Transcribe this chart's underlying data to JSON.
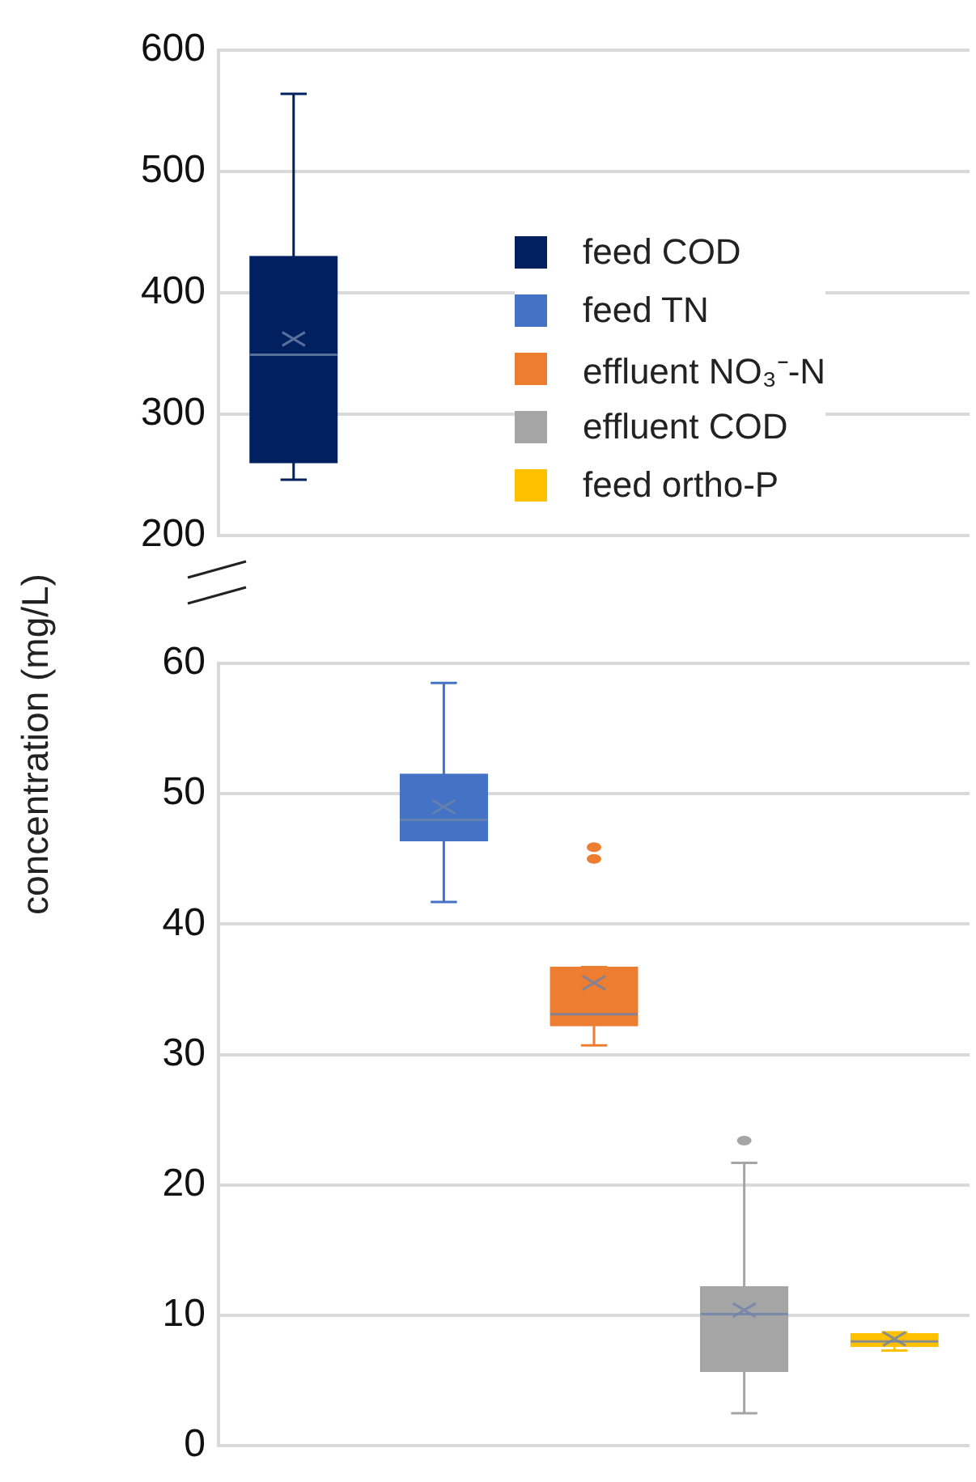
{
  "chart_data": [
    {
      "type": "box",
      "categories": [
        null,
        null,
        null,
        null,
        null
      ],
      "ylim": [
        200,
        600
      ],
      "yticks": [
        200,
        300,
        400,
        500,
        600
      ],
      "grid": "y",
      "legend": "right",
      "series": [
        {
          "name": "feed COD",
          "color": "#002060",
          "boxes": [
            {
              "low": 246,
              "q1": 260,
              "median": 349,
              "q3": 430,
              "high": 564,
              "mean": 362
            },
            null,
            null,
            null,
            null
          ]
        },
        {
          "name": "feed TN",
          "color": "#4472c4",
          "boxes": [
            null,
            null,
            null,
            null,
            null
          ]
        },
        {
          "name": "effluent NO₃⁻-N",
          "color": "#ed7d31",
          "boxes": [
            null,
            null,
            null,
            null,
            null
          ]
        },
        {
          "name": "effluent COD",
          "color": "#a5a5a5",
          "boxes": [
            null,
            null,
            null,
            null,
            null
          ]
        },
        {
          "name": "feed ortho-P",
          "color": "#ffc000",
          "boxes": [
            null,
            null,
            null,
            null,
            null
          ]
        }
      ]
    },
    {
      "type": "box",
      "categories": [
        null,
        null,
        null,
        null,
        null
      ],
      "ylim": [
        0,
        60
      ],
      "yticks": [
        0,
        10,
        20,
        30,
        40,
        50,
        60
      ],
      "grid": "y",
      "ylabel": "concentration (mg/L)",
      "series": [
        {
          "color": "#4472c4",
          "boxes": [
            null,
            {
              "low": 41.7,
              "q1": 46.4,
              "median": 48.0,
              "q3": 51.5,
              "high": 58.5,
              "mean": 49.0
            },
            null,
            null,
            null
          ]
        },
        {
          "color": "#ed7d31",
          "boxes": [
            null,
            null,
            {
              "low": 30.7,
              "q1": 32.2,
              "median": 33.1,
              "q3": 36.7,
              "high": 36.7,
              "mean": 35.5,
              "outliers": [
                45.9,
                45.0
              ]
            },
            null,
            null
          ]
        },
        {
          "color": "#a5a5a5",
          "boxes": [
            null,
            null,
            null,
            {
              "low": 2.5,
              "q1": 5.7,
              "median": 10.1,
              "q3": 12.2,
              "high": 21.7,
              "mean": 10.4,
              "outliers": [
                23.4
              ]
            },
            null
          ]
        },
        {
          "color": "#ffc000",
          "boxes": [
            null,
            null,
            null,
            null,
            {
              "low": 7.3,
              "q1": 7.6,
              "median": 8.0,
              "q3": 8.6,
              "high": 8.7,
              "mean": 8.2
            }
          ]
        }
      ]
    }
  ]
}
